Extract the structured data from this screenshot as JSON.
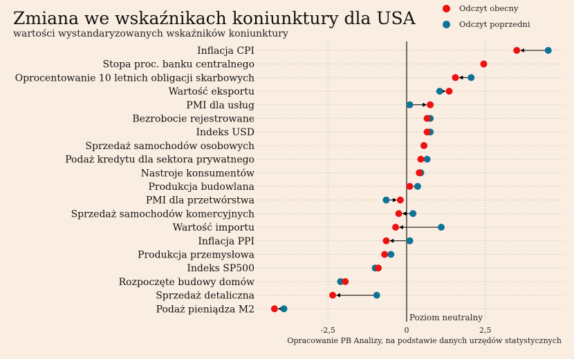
{
  "chart_data": {
    "type": "dumbbell",
    "title": "Zmiana we wskaźnikach koniunktury dla USA",
    "subtitle": "wartości wystandaryzowanych wskaźników koniunktury",
    "categories": [
      "Inflacja CPI",
      "Stopa proc. banku centralnego",
      "Oprocentowanie 10 letnich obligacji skarbowych",
      "Wartość eksportu",
      "PMI dla usług",
      "Bezrobocie rejestrowane",
      "Indeks USD",
      "Sprzedaż samochodów osobowych",
      "Podaż kredytu dla sektora prywatnego",
      "Nastroje konsumentów",
      "Produkcja budowlana",
      "PMI dla przetwórstwa",
      "Sprzedaż samochodów komercyjnych",
      "Wartość importu",
      "Inflacja PPI",
      "Produkcja przemysłowa",
      "Indeks SP500",
      "Rozpoczęte budowy domów",
      "Sprzedaż detaliczna",
      "Podaż pieniądza M2"
    ],
    "series": [
      {
        "name": "Odczyt obecny",
        "color": "#ee1111",
        "values": [
          3.5,
          2.45,
          1.55,
          1.35,
          0.75,
          0.65,
          0.65,
          0.55,
          0.45,
          0.4,
          0.1,
          -0.2,
          -0.25,
          -0.35,
          -0.65,
          -0.7,
          -0.9,
          -1.95,
          -2.35,
          -4.2
        ]
      },
      {
        "name": "Odczyt poprzedni",
        "color": "#0e7396",
        "values": [
          4.5,
          2.45,
          2.05,
          1.05,
          0.1,
          0.75,
          0.75,
          0.55,
          0.65,
          0.45,
          0.35,
          -0.65,
          0.2,
          1.1,
          0.1,
          -0.5,
          -1.0,
          -2.1,
          -0.95,
          -3.9
        ]
      }
    ],
    "x_ticks": [
      {
        "value": -2.5,
        "label": "-2,5"
      },
      {
        "value": 0,
        "label": "0"
      },
      {
        "value": 2.5,
        "label": "2,5"
      }
    ],
    "xlim": [
      -4.6,
      5.0
    ],
    "zero_line_label": "Poziom neutralny",
    "grid": "horizontal dotted",
    "legend_position": "top-right",
    "source_note": "Opracowanie PB Analizy, na podstawie danych urzędów statystycznych"
  }
}
